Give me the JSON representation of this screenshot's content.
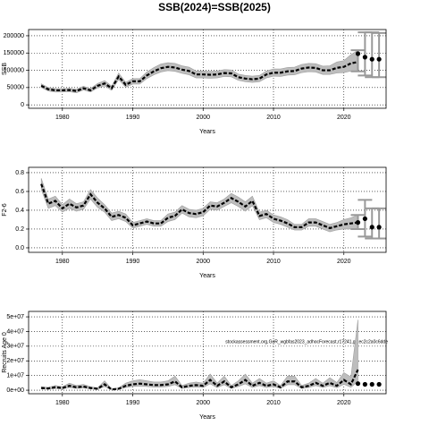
{
  "title": "SSB(2024)=SSB(2025)",
  "chart_data": [
    {
      "type": "line",
      "y_label": "SSB",
      "x_label": "Years",
      "x": [
        1977,
        1978,
        1979,
        1980,
        1981,
        1982,
        1983,
        1984,
        1985,
        1986,
        1987,
        1988,
        1989,
        1990,
        1991,
        1992,
        1993,
        1994,
        1995,
        1996,
        1997,
        1998,
        1999,
        2000,
        2001,
        2002,
        2003,
        2004,
        2005,
        2006,
        2007,
        2008,
        2009,
        2010,
        2011,
        2012,
        2013,
        2014,
        2015,
        2016,
        2017,
        2018,
        2019,
        2020,
        2021,
        2022
      ],
      "values": [
        55000,
        45000,
        42000,
        42000,
        43000,
        40000,
        48000,
        42000,
        55000,
        62000,
        48000,
        82000,
        58000,
        68000,
        68000,
        85000,
        97000,
        106000,
        110000,
        108000,
        102000,
        98000,
        88000,
        88000,
        87000,
        88000,
        92000,
        91000,
        80000,
        76000,
        74000,
        76000,
        88000,
        93000,
        93000,
        97000,
        98000,
        105000,
        108000,
        107000,
        100000,
        100000,
        107000,
        110000,
        120000,
        124000
      ],
      "lower": [
        50000,
        40000,
        37000,
        37000,
        38000,
        35000,
        43000,
        37000,
        49000,
        55000,
        42000,
        73000,
        51000,
        60000,
        60000,
        76000,
        87000,
        95000,
        99000,
        97000,
        91000,
        87000,
        78000,
        78000,
        77000,
        78000,
        82000,
        81000,
        71000,
        67000,
        65000,
        67000,
        78000,
        83000,
        82000,
        86000,
        87000,
        93000,
        96000,
        95000,
        88000,
        88000,
        92000,
        93000,
        98000,
        97000
      ],
      "upper": [
        61000,
        50000,
        47000,
        47000,
        48000,
        45000,
        54000,
        47000,
        62000,
        70000,
        54000,
        92000,
        65000,
        76000,
        76000,
        95000,
        108000,
        118000,
        122000,
        120000,
        113000,
        109000,
        98000,
        98000,
        97000,
        98000,
        102000,
        101000,
        89000,
        85000,
        83000,
        85000,
        98000,
        104000,
        104000,
        108000,
        109000,
        117000,
        120000,
        119000,
        112000,
        113000,
        124000,
        128000,
        145000,
        158000
      ],
      "forecast": {
        "x": [
          2022,
          2023,
          2024,
          2025
        ],
        "values": [
          148000,
          138000,
          132000,
          132000
        ],
        "low": [
          97000,
          85000,
          80000,
          80000
        ],
        "high": [
          158000,
          210000,
          210000,
          208000
        ]
      },
      "xlim": [
        1975.2,
        2026
      ],
      "xticks": [
        1980,
        1990,
        2000,
        2010,
        2020
      ],
      "ylim": [
        -10000,
        218000
      ],
      "yticks": [
        0,
        50000,
        100000,
        150000,
        200000
      ],
      "grid": true
    },
    {
      "type": "line",
      "y_label": "F2-6",
      "x_label": "Years",
      "x": [
        1977,
        1978,
        1979,
        1980,
        1981,
        1982,
        1983,
        1984,
        1985,
        1986,
        1987,
        1988,
        1989,
        1990,
        1991,
        1992,
        1993,
        1994,
        1995,
        1996,
        1997,
        1998,
        1999,
        2000,
        2001,
        2002,
        2003,
        2004,
        2005,
        2006,
        2007,
        2008,
        2009,
        2010,
        2011,
        2012,
        2013,
        2014,
        2015,
        2016,
        2017,
        2018,
        2019,
        2020,
        2021,
        2022
      ],
      "values": [
        0.68,
        0.47,
        0.5,
        0.42,
        0.47,
        0.43,
        0.45,
        0.57,
        0.48,
        0.42,
        0.33,
        0.35,
        0.32,
        0.24,
        0.26,
        0.28,
        0.26,
        0.26,
        0.32,
        0.34,
        0.41,
        0.37,
        0.36,
        0.38,
        0.45,
        0.44,
        0.48,
        0.53,
        0.49,
        0.44,
        0.5,
        0.34,
        0.36,
        0.31,
        0.29,
        0.26,
        0.22,
        0.22,
        0.27,
        0.27,
        0.24,
        0.21,
        0.23,
        0.25,
        0.26,
        0.27
      ],
      "lower": [
        0.62,
        0.42,
        0.45,
        0.38,
        0.42,
        0.39,
        0.41,
        0.52,
        0.43,
        0.38,
        0.29,
        0.31,
        0.28,
        0.21,
        0.23,
        0.25,
        0.23,
        0.23,
        0.28,
        0.3,
        0.37,
        0.33,
        0.32,
        0.34,
        0.41,
        0.4,
        0.44,
        0.48,
        0.44,
        0.39,
        0.45,
        0.3,
        0.32,
        0.27,
        0.25,
        0.22,
        0.19,
        0.19,
        0.23,
        0.23,
        0.2,
        0.17,
        0.19,
        0.2,
        0.2,
        0.2
      ],
      "upper": [
        0.74,
        0.52,
        0.55,
        0.46,
        0.52,
        0.47,
        0.49,
        0.62,
        0.53,
        0.46,
        0.37,
        0.39,
        0.36,
        0.27,
        0.29,
        0.31,
        0.29,
        0.29,
        0.36,
        0.38,
        0.45,
        0.41,
        0.4,
        0.42,
        0.49,
        0.48,
        0.52,
        0.58,
        0.54,
        0.49,
        0.55,
        0.38,
        0.4,
        0.35,
        0.33,
        0.3,
        0.25,
        0.25,
        0.31,
        0.31,
        0.28,
        0.25,
        0.27,
        0.3,
        0.32,
        0.35
      ],
      "forecast": {
        "x": [
          2022,
          2023,
          2024,
          2025
        ],
        "values": [
          0.27,
          0.31,
          0.22,
          0.22
        ],
        "low": [
          0.2,
          0.12,
          0.1,
          0.1
        ],
        "high": [
          0.35,
          0.51,
          0.42,
          0.42
        ]
      },
      "xlim": [
        1975.2,
        2026
      ],
      "xticks": [
        1980,
        1990,
        2000,
        2010,
        2020
      ],
      "ylim": [
        -0.048,
        0.857
      ],
      "yticks": [
        {
          "value": 0,
          "label": "0.0"
        },
        0.2,
        0.4,
        0.6,
        0.8
      ],
      "grid": true
    },
    {
      "type": "line",
      "y_label": "Recruits Age 0",
      "x_label": "Years",
      "annotation": "stockassessment.org,GoR_wgbfas2023_adhocForecast,r17241,git:ec2c2a0c6dde",
      "x": [
        1977,
        1978,
        1979,
        1980,
        1981,
        1982,
        1983,
        1984,
        1985,
        1986,
        1987,
        1988,
        1989,
        1990,
        1991,
        1992,
        1993,
        1994,
        1995,
        1996,
        1997,
        1998,
        1999,
        2000,
        2001,
        2002,
        2003,
        2004,
        2005,
        2006,
        2007,
        2008,
        2009,
        2010,
        2011,
        2012,
        2013,
        2014,
        2015,
        2016,
        2017,
        2018,
        2019,
        2020,
        2021,
        2022
      ],
      "values": [
        1500000,
        1200000,
        2000000,
        1500000,
        3000000,
        2000000,
        2500000,
        1500000,
        1000000,
        4000000,
        500000,
        1000000,
        3000000,
        4000000,
        4500000,
        4000000,
        3500000,
        3500000,
        4000000,
        6000000,
        2000000,
        3000000,
        3500000,
        3000000,
        7000000,
        3000000,
        6000000,
        2000000,
        4000000,
        7000000,
        3000000,
        5000000,
        3000000,
        4000000,
        2000000,
        6000000,
        6000000,
        2000000,
        3000000,
        5000000,
        3000000,
        5000000,
        3000000,
        7000000,
        4000000,
        14000000
      ],
      "lower": [
        900000,
        700000,
        1200000,
        900000,
        1800000,
        1200000,
        1500000,
        900000,
        600000,
        2500000,
        300000,
        600000,
        1800000,
        2500000,
        2800000,
        2500000,
        2100000,
        2100000,
        2500000,
        3700000,
        1200000,
        1800000,
        2100000,
        1800000,
        4300000,
        1800000,
        3700000,
        1200000,
        2500000,
        4300000,
        1800000,
        3100000,
        1800000,
        2500000,
        1200000,
        3700000,
        3700000,
        1200000,
        1800000,
        3100000,
        1800000,
        3000000,
        1700000,
        4000000,
        2000000,
        6000000
      ],
      "upper": [
        2400000,
        1900000,
        3200000,
        2400000,
        4800000,
        3200000,
        4000000,
        2400000,
        1600000,
        6400000,
        800000,
        1600000,
        4800000,
        6400000,
        7200000,
        6400000,
        5600000,
        5600000,
        6400000,
        9600000,
        3200000,
        4800000,
        5600000,
        4800000,
        11000000,
        4800000,
        9600000,
        3200000,
        6400000,
        11000000,
        4800000,
        8000000,
        4800000,
        6400000,
        3200000,
        9600000,
        9600000,
        3200000,
        4800000,
        8000000,
        4800000,
        8500000,
        5200000,
        12000000,
        9000000,
        48000000
      ],
      "forecast": {
        "x": [
          2022,
          2023,
          2024,
          2025
        ],
        "values": [
          4500000,
          4000000,
          4000000,
          4000000
        ]
      },
      "xlim": [
        1975.2,
        2026
      ],
      "xticks": [
        1980,
        1990,
        2000,
        2010,
        2020
      ],
      "ylim": [
        -2400000,
        53700000
      ],
      "yticks": [
        {
          "value": 0,
          "label": "0e+00"
        },
        {
          "value": 10000000,
          "label": "1e+07"
        },
        {
          "value": 20000000,
          "label": "2e+07"
        },
        {
          "value": 30000000,
          "label": "3e+07"
        },
        {
          "value": 40000000,
          "label": "4e+07"
        },
        {
          "value": 50000000,
          "label": "5e+07"
        }
      ],
      "grid": true
    }
  ]
}
